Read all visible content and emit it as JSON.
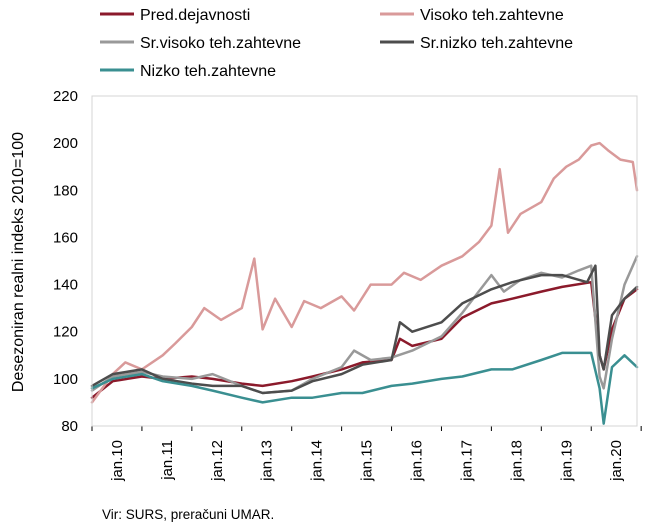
{
  "chart_data": {
    "type": "line",
    "title": "",
    "xlabel": "",
    "ylabel": "Desezoniran realni indeks 2010=100",
    "ylim": [
      80,
      220
    ],
    "yticks": [
      80,
      100,
      120,
      140,
      160,
      180,
      200,
      220
    ],
    "x_start": "2010-01",
    "x_end": "2020-12",
    "xticks": [
      "jan.10",
      "jan.11",
      "jan.12",
      "jan.13",
      "jan.14",
      "jan.15",
      "jan.16",
      "jan.17",
      "jan.18",
      "jan.19",
      "jan.20"
    ],
    "grid": false,
    "legend_position": "top",
    "series": [
      {
        "name": "Pred.dejavnosti",
        "color": "#8b1a2b",
        "points": [
          [
            "2010-01",
            92
          ],
          [
            "2010-06",
            99
          ],
          [
            "2011-01",
            101
          ],
          [
            "2011-06",
            100
          ],
          [
            "2012-01",
            101
          ],
          [
            "2012-06",
            100
          ],
          [
            "2013-01",
            98
          ],
          [
            "2013-06",
            97
          ],
          [
            "2014-01",
            99
          ],
          [
            "2014-06",
            101
          ],
          [
            "2015-01",
            104
          ],
          [
            "2015-06",
            107
          ],
          [
            "2016-01",
            108
          ],
          [
            "2016-03",
            117
          ],
          [
            "2016-06",
            114
          ],
          [
            "2017-01",
            117
          ],
          [
            "2017-06",
            126
          ],
          [
            "2018-01",
            132
          ],
          [
            "2018-06",
            134
          ],
          [
            "2019-01",
            137
          ],
          [
            "2019-06",
            139
          ],
          [
            "2020-01",
            141
          ],
          [
            "2020-03",
            110
          ],
          [
            "2020-04",
            104
          ],
          [
            "2020-06",
            121
          ],
          [
            "2020-09",
            134
          ],
          [
            "2020-12",
            138
          ]
        ]
      },
      {
        "name": "Visoko teh.zahtevne",
        "color": "#d99a9a",
        "points": [
          [
            "2010-01",
            90
          ],
          [
            "2010-06",
            102
          ],
          [
            "2010-09",
            107
          ],
          [
            "2011-01",
            104
          ],
          [
            "2011-06",
            110
          ],
          [
            "2011-09",
            115
          ],
          [
            "2012-01",
            122
          ],
          [
            "2012-04",
            130
          ],
          [
            "2012-08",
            125
          ],
          [
            "2013-01",
            130
          ],
          [
            "2013-04",
            151
          ],
          [
            "2013-06",
            121
          ],
          [
            "2013-09",
            134
          ],
          [
            "2014-01",
            122
          ],
          [
            "2014-04",
            133
          ],
          [
            "2014-08",
            130
          ],
          [
            "2015-01",
            135
          ],
          [
            "2015-04",
            129
          ],
          [
            "2015-08",
            140
          ],
          [
            "2016-01",
            140
          ],
          [
            "2016-04",
            145
          ],
          [
            "2016-08",
            142
          ],
          [
            "2017-01",
            148
          ],
          [
            "2017-06",
            152
          ],
          [
            "2017-10",
            158
          ],
          [
            "2018-01",
            165
          ],
          [
            "2018-03",
            189
          ],
          [
            "2018-05",
            162
          ],
          [
            "2018-08",
            170
          ],
          [
            "2019-01",
            175
          ],
          [
            "2019-04",
            185
          ],
          [
            "2019-07",
            190
          ],
          [
            "2019-10",
            193
          ],
          [
            "2020-01",
            199
          ],
          [
            "2020-03",
            200
          ],
          [
            "2020-05",
            197
          ],
          [
            "2020-08",
            193
          ],
          [
            "2020-11",
            192
          ],
          [
            "2020-12",
            180
          ]
        ]
      },
      {
        "name": "Sr.visoko teh.zahtevne",
        "color": "#999999",
        "points": [
          [
            "2010-01",
            95
          ],
          [
            "2010-06",
            101
          ],
          [
            "2011-01",
            103
          ],
          [
            "2011-06",
            101
          ],
          [
            "2012-01",
            100
          ],
          [
            "2012-06",
            102
          ],
          [
            "2013-01",
            97
          ],
          [
            "2013-06",
            94
          ],
          [
            "2014-01",
            95
          ],
          [
            "2014-06",
            100
          ],
          [
            "2015-01",
            105
          ],
          [
            "2015-04",
            112
          ],
          [
            "2015-08",
            108
          ],
          [
            "2016-01",
            109
          ],
          [
            "2016-06",
            112
          ],
          [
            "2017-01",
            118
          ],
          [
            "2017-06",
            128
          ],
          [
            "2018-01",
            144
          ],
          [
            "2018-04",
            137
          ],
          [
            "2018-08",
            142
          ],
          [
            "2019-01",
            145
          ],
          [
            "2019-06",
            143
          ],
          [
            "2019-10",
            146
          ],
          [
            "2020-01",
            148
          ],
          [
            "2020-03",
            101
          ],
          [
            "2020-04",
            96
          ],
          [
            "2020-06",
            117
          ],
          [
            "2020-09",
            140
          ],
          [
            "2020-12",
            152
          ]
        ]
      },
      {
        "name": "Sr.nizko teh.zahtevne",
        "color": "#4d4d4d",
        "points": [
          [
            "2010-01",
            97
          ],
          [
            "2010-06",
            102
          ],
          [
            "2011-01",
            104
          ],
          [
            "2011-06",
            100
          ],
          [
            "2012-01",
            98
          ],
          [
            "2012-06",
            97
          ],
          [
            "2013-01",
            97
          ],
          [
            "2013-06",
            94
          ],
          [
            "2014-01",
            95
          ],
          [
            "2014-06",
            99
          ],
          [
            "2015-01",
            102
          ],
          [
            "2015-06",
            106
          ],
          [
            "2016-01",
            108
          ],
          [
            "2016-03",
            124
          ],
          [
            "2016-06",
            120
          ],
          [
            "2017-01",
            124
          ],
          [
            "2017-06",
            132
          ],
          [
            "2018-01",
            138
          ],
          [
            "2018-06",
            141
          ],
          [
            "2019-01",
            144
          ],
          [
            "2019-06",
            144
          ],
          [
            "2019-12",
            141
          ],
          [
            "2020-02",
            148
          ],
          [
            "2020-03",
            110
          ],
          [
            "2020-04",
            104
          ],
          [
            "2020-06",
            127
          ],
          [
            "2020-09",
            134
          ],
          [
            "2020-12",
            139
          ]
        ]
      },
      {
        "name": "Nizko teh.zahtevne",
        "color": "#3a8f91",
        "points": [
          [
            "2010-01",
            96
          ],
          [
            "2010-06",
            100
          ],
          [
            "2011-01",
            102
          ],
          [
            "2011-06",
            99
          ],
          [
            "2012-01",
            97
          ],
          [
            "2012-06",
            95
          ],
          [
            "2013-01",
            92
          ],
          [
            "2013-06",
            90
          ],
          [
            "2014-01",
            92
          ],
          [
            "2014-06",
            92
          ],
          [
            "2015-01",
            94
          ],
          [
            "2015-06",
            94
          ],
          [
            "2016-01",
            97
          ],
          [
            "2016-06",
            98
          ],
          [
            "2017-01",
            100
          ],
          [
            "2017-06",
            101
          ],
          [
            "2018-01",
            104
          ],
          [
            "2018-06",
            104
          ],
          [
            "2019-01",
            108
          ],
          [
            "2019-06",
            111
          ],
          [
            "2020-01",
            111
          ],
          [
            "2020-03",
            96
          ],
          [
            "2020-04",
            81
          ],
          [
            "2020-06",
            105
          ],
          [
            "2020-09",
            110
          ],
          [
            "2020-12",
            105
          ]
        ]
      }
    ]
  },
  "source_note": "Vir: SURS, preračuni UMAR."
}
